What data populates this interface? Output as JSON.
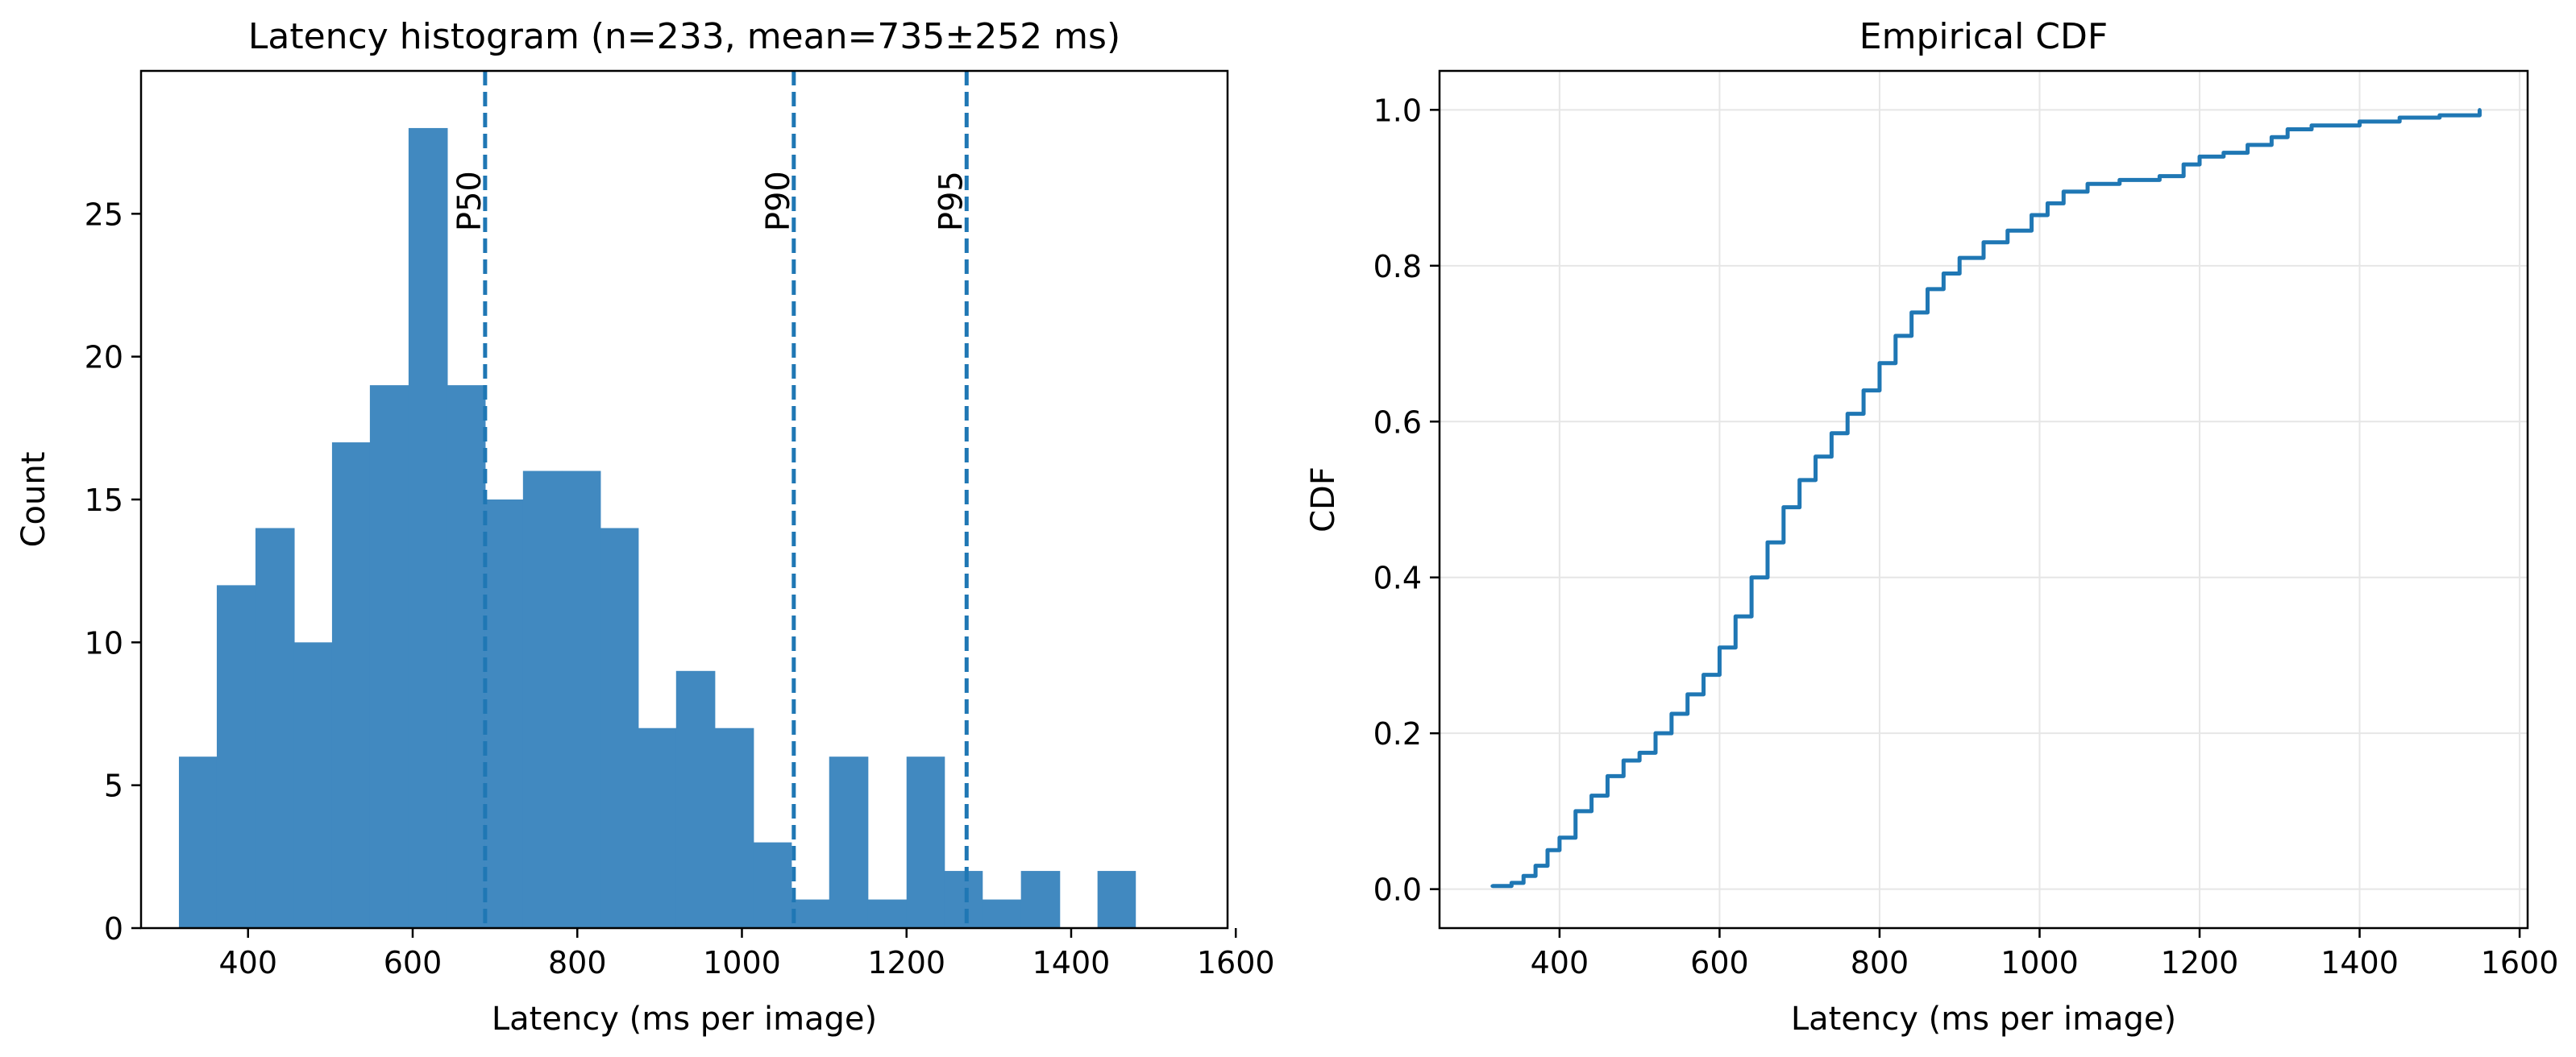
{
  "figure": {
    "colors": {
      "bar": "#4189c0",
      "line": "#1f77b4",
      "marker": "#1f77b4",
      "grid": "#e6e6e6"
    }
  },
  "chart_data": [
    {
      "type": "bar",
      "title": "Latency histogram (n=233, mean=735±252 ms)",
      "xlabel": "Latency (ms per image)",
      "ylabel": "Count",
      "xlim": [
        270,
        1590
      ],
      "ylim": [
        0,
        30
      ],
      "xticks": [
        400,
        600,
        800,
        1000,
        1200,
        1400,
        1600
      ],
      "yticks": [
        0,
        5,
        10,
        15,
        20,
        25
      ],
      "grid": false,
      "bin_edges": [
        316,
        362,
        409,
        456,
        502,
        548,
        595,
        642,
        688,
        734,
        781,
        828,
        874,
        920,
        967,
        1014,
        1060,
        1106,
        1153,
        1200,
        1246,
        1292,
        1339,
        1386,
        1432,
        1478,
        1525,
        1571
      ],
      "counts": [
        6,
        12,
        14,
        10,
        17,
        19,
        28,
        19,
        15,
        16,
        16,
        14,
        7,
        9,
        7,
        3,
        1,
        6,
        1,
        6,
        2,
        1,
        2,
        0,
        2,
        0,
        0
      ],
      "markers": [
        {
          "label": "P50",
          "x": 688
        },
        {
          "label": "P90",
          "x": 1063
        },
        {
          "label": "P95",
          "x": 1273
        }
      ]
    },
    {
      "type": "line",
      "title": "Empirical CDF",
      "xlabel": "Latency (ms per image)",
      "ylabel": "CDF",
      "xlim": [
        250,
        1610
      ],
      "ylim": [
        -0.05,
        1.05
      ],
      "xticks": [
        400,
        600,
        800,
        1000,
        1200,
        1400,
        1600
      ],
      "yticks": [
        0.0,
        0.2,
        0.4,
        0.6,
        0.8,
        1.0
      ],
      "grid": true,
      "series": [
        {
          "x": [
            316,
            340,
            355,
            370,
            385,
            400,
            420,
            440,
            460,
            480,
            500,
            520,
            540,
            560,
            580,
            600,
            620,
            640,
            660,
            680,
            700,
            720,
            740,
            760,
            780,
            800,
            820,
            840,
            860,
            880,
            900,
            930,
            960,
            990,
            1010,
            1030,
            1060,
            1100,
            1150,
            1180,
            1200,
            1230,
            1260,
            1290,
            1310,
            1340,
            1400,
            1450,
            1500,
            1550
          ],
          "y": [
            0.004,
            0.008,
            0.017,
            0.03,
            0.05,
            0.066,
            0.1,
            0.12,
            0.145,
            0.165,
            0.175,
            0.2,
            0.225,
            0.25,
            0.275,
            0.31,
            0.35,
            0.4,
            0.445,
            0.49,
            0.525,
            0.555,
            0.585,
            0.61,
            0.64,
            0.675,
            0.71,
            0.74,
            0.77,
            0.79,
            0.81,
            0.83,
            0.845,
            0.865,
            0.88,
            0.895,
            0.905,
            0.91,
            0.915,
            0.93,
            0.94,
            0.945,
            0.955,
            0.965,
            0.975,
            0.98,
            0.985,
            0.99,
            0.993,
            1.0
          ]
        }
      ]
    }
  ]
}
